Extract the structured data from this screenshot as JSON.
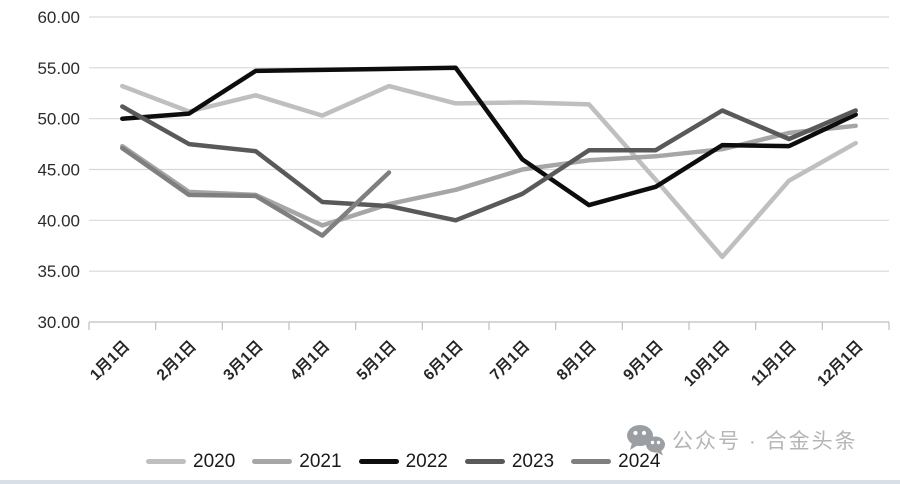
{
  "watermark": {
    "text": "公众号 · 合金头条",
    "icon": "wechat-icon",
    "color": "#b5b5b5",
    "icon_color": "#9b9fa3"
  },
  "chart_data": {
    "type": "line",
    "title": "",
    "xlabel": "",
    "ylabel": "",
    "categories": [
      "1月1日",
      "2月1日",
      "3月1日",
      "4月1日",
      "5月1日",
      "6月1日",
      "7月1日",
      "8月1日",
      "9月1日",
      "10月1日",
      "11月1日",
      "12月1日"
    ],
    "series": [
      {
        "name": "2020",
        "color": "#bfbfbf",
        "values": [
          53.2,
          50.7,
          52.3,
          50.3,
          53.2,
          51.5,
          51.6,
          51.4,
          44.0,
          36.4,
          43.9,
          47.6
        ]
      },
      {
        "name": "2021",
        "color": "#a6a6a6",
        "values": [
          47.3,
          42.8,
          42.5,
          39.5,
          41.6,
          43.0,
          45.0,
          45.9,
          46.3,
          47.0,
          48.6,
          49.3
        ]
      },
      {
        "name": "2022",
        "color": "#0d0d0d",
        "values": [
          50.0,
          50.5,
          54.7,
          54.8,
          54.9,
          55.0,
          46.0,
          41.5,
          43.3,
          47.4,
          47.3,
          50.4
        ]
      },
      {
        "name": "2023",
        "color": "#595959",
        "values": [
          51.2,
          47.5,
          46.8,
          41.8,
          41.4,
          40.0,
          42.6,
          46.9,
          46.9,
          50.8,
          48.0,
          50.8
        ]
      },
      {
        "name": "2024",
        "color": "#7f7f7f",
        "values": [
          47.1,
          42.5,
          42.4,
          38.5,
          44.7,
          null,
          null,
          null,
          null,
          null,
          null,
          null
        ]
      }
    ],
    "ylim": [
      30,
      60
    ],
    "ytick_step": 5,
    "ytick_labels": [
      "30.00",
      "35.00",
      "40.00",
      "45.00",
      "50.00",
      "55.00",
      "60.00"
    ],
    "grid": true,
    "gridline_color": "#d9d9d9",
    "axis_color": "#bfbfbf",
    "tick_label_color": "#262626",
    "legend_position": "bottom",
    "line_width": 4.5
  }
}
